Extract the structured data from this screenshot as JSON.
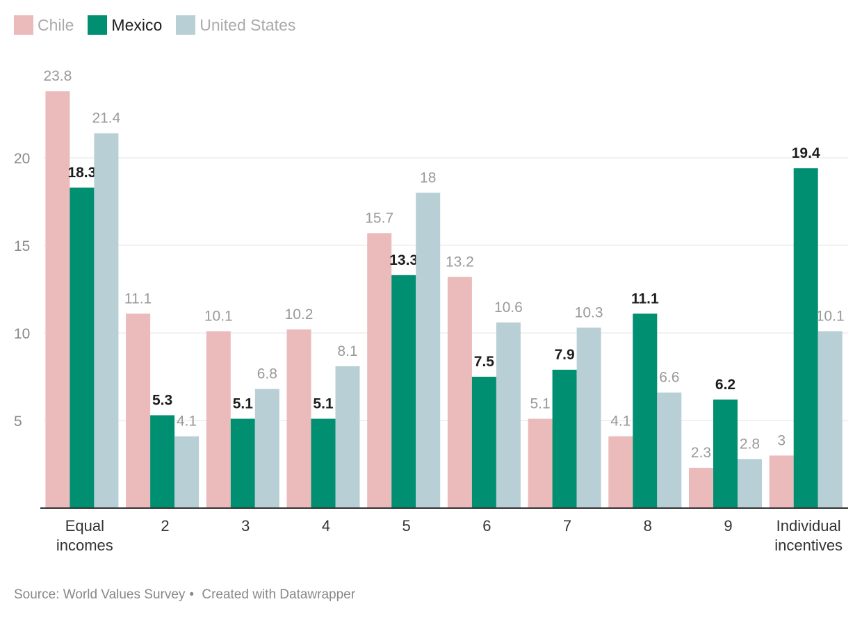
{
  "chart_data": {
    "type": "bar",
    "categories": [
      [
        "Equal",
        "incomes"
      ],
      [
        "2"
      ],
      [
        "3"
      ],
      [
        "4"
      ],
      [
        "5"
      ],
      [
        "6"
      ],
      [
        "7"
      ],
      [
        "8"
      ],
      [
        "9"
      ],
      [
        "Individual",
        "incentives"
      ]
    ],
    "series": [
      {
        "name": "Chile",
        "color": "#ebbaba",
        "label_color": "#999999",
        "label_bold": false,
        "values": [
          23.8,
          11.1,
          10.1,
          10.2,
          15.7,
          13.2,
          5.1,
          4.1,
          2.3,
          3
        ]
      },
      {
        "name": "Mexico",
        "color": "#008f71",
        "label_color": "#1d1d1d",
        "label_bold": true,
        "values": [
          18.3,
          5.3,
          5.1,
          5.1,
          13.3,
          7.5,
          7.9,
          11.1,
          6.2,
          19.4
        ]
      },
      {
        "name": "United States",
        "color": "#b8cfd6",
        "label_color": "#999999",
        "label_bold": false,
        "values": [
          21.4,
          4.1,
          6.8,
          8.1,
          18,
          10.6,
          10.3,
          6.6,
          2.8,
          10.1
        ]
      }
    ],
    "y_ticks": [
      5,
      10,
      15,
      20
    ],
    "ylim": [
      0,
      25
    ],
    "grid": true,
    "legend": "top-left",
    "value_labels": true
  },
  "legend": [
    {
      "label": "Chile",
      "color": "#ebbaba",
      "text_color": "#aaaaaa"
    },
    {
      "label": "Mexico",
      "color": "#008f71",
      "text_color": "#1d1d1d"
    },
    {
      "label": "United States",
      "color": "#b8cfd6",
      "text_color": "#aaaaaa"
    }
  ],
  "footer": {
    "source": "Source: World Values Survey",
    "separator": "•",
    "credit": "Created with Datawrapper"
  }
}
